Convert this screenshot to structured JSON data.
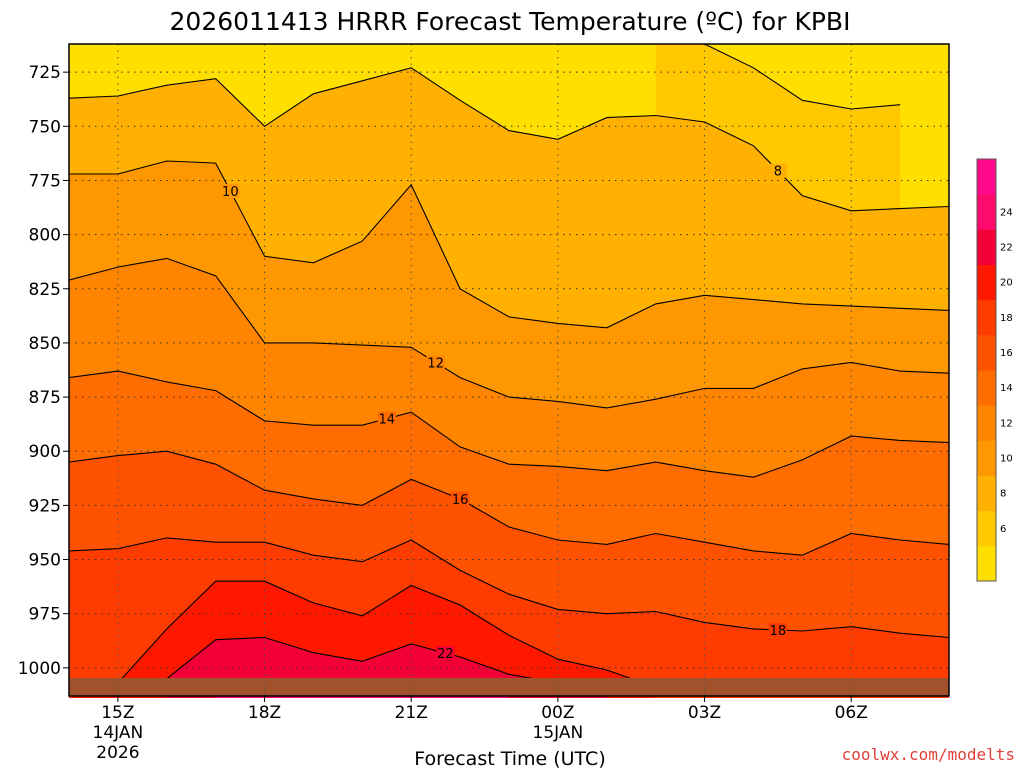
{
  "chart_data": {
    "type": "contour",
    "title": "2026011413 HRRR Forecast Temperature (ºC) for KPBI",
    "xlabel": "Forecast Time (UTC)",
    "ylabel": "",
    "x_range_hours_after_14Z": [
      0,
      18
    ],
    "y_range_hpa": [
      712,
      1013
    ],
    "y_axis_inverted": true,
    "grid": true,
    "y_ticks": [
      "725",
      "750",
      "775",
      "800",
      "825",
      "850",
      "875",
      "900",
      "925",
      "950",
      "975",
      "1000"
    ],
    "x_ticks": [
      {
        "hour": 1,
        "lines": [
          "15Z",
          "14JAN",
          "2026"
        ]
      },
      {
        "hour": 4,
        "lines": [
          "18Z"
        ]
      },
      {
        "hour": 7,
        "lines": [
          "21Z"
        ]
      },
      {
        "hour": 10,
        "lines": [
          "00Z",
          "15JAN"
        ]
      },
      {
        "hour": 13,
        "lines": [
          "03Z"
        ]
      },
      {
        "hour": 16,
        "lines": [
          "06Z"
        ]
      }
    ],
    "colorbar": {
      "levels": [
        4,
        6,
        8,
        10,
        12,
        14,
        16,
        18,
        20,
        22,
        24,
        26
      ],
      "tick_labels": [
        "6",
        "8",
        "10",
        "12",
        "14",
        "16",
        "18",
        "20",
        "22",
        "24"
      ],
      "colors": [
        "#ffdf00",
        "#ffc800",
        "#ffb000",
        "#ff9800",
        "#ff8400",
        "#ff6c00",
        "#ff5200",
        "#ff3c00",
        "#ff1800",
        "#f20036",
        "#ff0a6e",
        "#ff0a8c"
      ]
    },
    "ground_color": "#a0522d",
    "hours": [
      0,
      1,
      2,
      3,
      4,
      5,
      6,
      7,
      8,
      9,
      10,
      11,
      12,
      13,
      14,
      15,
      16,
      17,
      18
    ],
    "isotherms": [
      {
        "value": 6,
        "label": "",
        "pressure": [
          null,
          null,
          null,
          null,
          null,
          null,
          null,
          null,
          null,
          null,
          null,
          null,
          712,
          712,
          723,
          738,
          742,
          740,
          null
        ]
      },
      {
        "value": 8,
        "label": "8",
        "pressure": [
          737,
          736,
          731,
          728,
          750,
          735,
          729,
          723,
          738,
          752,
          756,
          746,
          745,
          748,
          759,
          782,
          789,
          788,
          787
        ]
      },
      {
        "value": 10,
        "label": "10",
        "pressure": [
          772,
          772,
          766,
          767,
          810,
          813,
          803,
          777,
          825,
          838,
          841,
          843,
          832,
          828,
          830,
          832,
          833,
          834,
          835
        ]
      },
      {
        "value": 12,
        "label": "12",
        "pressure": [
          821,
          815,
          811,
          819,
          850,
          850,
          851,
          852,
          866,
          875,
          877,
          880,
          876,
          871,
          871,
          862,
          859,
          863,
          864
        ]
      },
      {
        "value": 14,
        "label": "14",
        "pressure": [
          866,
          863,
          868,
          872,
          886,
          888,
          888,
          882,
          898,
          906,
          907,
          909,
          905,
          909,
          912,
          904,
          893,
          895,
          896
        ]
      },
      {
        "value": 16,
        "label": "16",
        "pressure": [
          905,
          902,
          900,
          906,
          918,
          922,
          925,
          913,
          922,
          935,
          941,
          943,
          938,
          942,
          946,
          948,
          938,
          941,
          943
        ]
      },
      {
        "value": 18,
        "label": "18",
        "pressure": [
          946,
          945,
          940,
          942,
          942,
          948,
          951,
          941,
          955,
          966,
          973,
          975,
          974,
          979,
          982,
          983,
          981,
          984,
          986
        ]
      },
      {
        "value": 20,
        "label": "",
        "pressure": [
          1009,
          1007,
          982,
          960,
          960,
          970,
          976,
          962,
          971,
          985,
          996,
          1001,
          1009,
          null,
          null,
          null,
          null,
          null,
          null
        ]
      },
      {
        "value": 22,
        "label": "22",
        "pressure": [
          null,
          null,
          1005,
          987,
          986,
          993,
          997,
          989,
          995,
          1003,
          1007,
          1009,
          null,
          null,
          null,
          null,
          null,
          null,
          null
        ]
      },
      {
        "value": 24,
        "label": "",
        "pressure": [
          null,
          null,
          null,
          1007,
          1009,
          1011,
          1010,
          1008,
          1010,
          1010,
          null,
          null,
          null,
          null,
          null,
          null,
          null,
          null,
          null
        ]
      }
    ]
  },
  "footer": {
    "credit": "coolwx.com/modelts"
  }
}
